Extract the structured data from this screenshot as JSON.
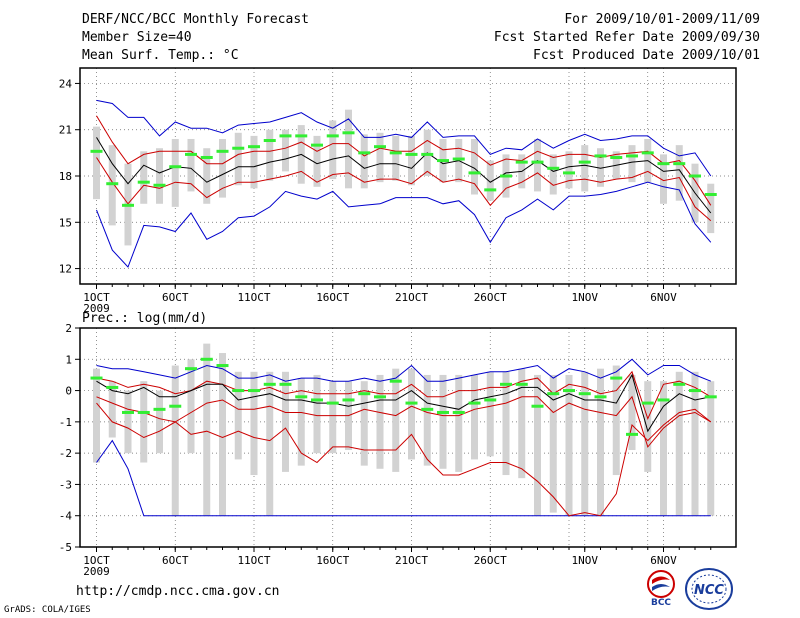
{
  "header": {
    "title": "DERF/NCC/BCC Monthly Forecast",
    "member_size": "Member Size=40",
    "variable": "Mean Surf. Temp.: °C",
    "period": "For 2009/10/01-2009/11/09",
    "fcst_started": "Fcst Started Refer Date 2009/09/30",
    "fcst_produced": "Fcst Produced Date 2009/10/01"
  },
  "footer": {
    "url": "http://cmdp.ncc.cma.gov.cn",
    "grads": "GrADS: COLA/IGES",
    "logo_bcc": "BCC",
    "logo_ncc": "NCC"
  },
  "colors": {
    "max_min": "#0000cc",
    "spread": "#cc0000",
    "mean": "#000000",
    "control": "#33ee33",
    "box": "#d2d2d2"
  },
  "chart_data": [
    {
      "type": "line",
      "title": "Mean Surf. Temp.: °C",
      "ylim": [
        11,
        25
      ],
      "yticks": [
        12,
        15,
        18,
        21,
        24
      ],
      "xticks": [
        {
          "day": 0,
          "label": "1OCT"
        },
        {
          "day": 5,
          "label": "6OCT"
        },
        {
          "day": 10,
          "label": "11OCT"
        },
        {
          "day": 15,
          "label": "16OCT"
        },
        {
          "day": 20,
          "label": "21OCT"
        },
        {
          "day": 25,
          "label": "26OCT"
        },
        {
          "day": 31,
          "label": "1NOV"
        },
        {
          "day": 36,
          "label": "6NOV"
        }
      ],
      "year_label": "2009",
      "series": [
        {
          "name": "max",
          "values": [
            22.9,
            22.7,
            21.8,
            21.8,
            20.6,
            21.5,
            21.1,
            21.1,
            20.8,
            21.3,
            21.4,
            21.5,
            21.8,
            22.1,
            21.5,
            21.1,
            21.7,
            20.5,
            20.5,
            20.7,
            20.5,
            21.5,
            20.5,
            20.6,
            20.6,
            19.4,
            19.8,
            19.7,
            20.4,
            19.8,
            20.3,
            20.7,
            20.3,
            20.4,
            20.6,
            20.6,
            19.8,
            19.3,
            19.5,
            18.0
          ]
        },
        {
          "name": "upper",
          "values": [
            21.9,
            20.2,
            18.8,
            19.4,
            19.6,
            19.6,
            19.6,
            18.8,
            18.8,
            19.4,
            19.6,
            19.6,
            19.8,
            20.2,
            19.6,
            20.1,
            20.1,
            19.3,
            19.8,
            19.6,
            19.6,
            20.3,
            19.7,
            19.8,
            19.5,
            18.7,
            19.1,
            19.0,
            19.6,
            19.2,
            19.4,
            19.4,
            19.2,
            19.4,
            19.5,
            19.6,
            18.8,
            19.0,
            17.7,
            16.1
          ]
        },
        {
          "name": "mean",
          "values": [
            20.5,
            18.8,
            17.5,
            18.7,
            18.2,
            18.6,
            18.5,
            17.6,
            18.1,
            18.6,
            18.6,
            18.9,
            19.1,
            19.4,
            18.8,
            19.1,
            19.3,
            18.5,
            18.8,
            18.8,
            18.5,
            19.5,
            18.8,
            19.0,
            18.5,
            17.6,
            18.2,
            18.3,
            19.0,
            18.3,
            18.6,
            18.7,
            18.5,
            18.7,
            18.9,
            19.0,
            18.3,
            18.4,
            16.9,
            15.6
          ]
        },
        {
          "name": "lower",
          "values": [
            19.2,
            17.6,
            16.2,
            17.4,
            17.2,
            17.6,
            17.5,
            16.6,
            17.2,
            17.6,
            17.6,
            17.8,
            18.0,
            18.3,
            17.6,
            18.1,
            18.2,
            17.6,
            17.8,
            17.8,
            17.5,
            18.3,
            17.6,
            17.8,
            17.5,
            16.1,
            17.2,
            17.6,
            18.2,
            17.4,
            17.7,
            17.8,
            17.6,
            17.8,
            17.9,
            18.3,
            17.7,
            17.9,
            16.0,
            15.1
          ]
        },
        {
          "name": "min",
          "values": [
            15.8,
            13.2,
            12.1,
            14.8,
            14.7,
            14.4,
            15.6,
            13.9,
            14.4,
            15.3,
            15.4,
            16.0,
            17.0,
            16.7,
            16.5,
            17.0,
            16.0,
            16.1,
            16.2,
            16.6,
            16.6,
            16.6,
            16.2,
            16.4,
            15.5,
            13.7,
            15.3,
            15.8,
            16.5,
            15.8,
            16.7,
            16.7,
            16.8,
            17.0,
            17.3,
            17.6,
            17.3,
            17.1,
            14.9,
            13.7
          ]
        },
        {
          "name": "control",
          "values": [
            19.6,
            17.5,
            16.1,
            17.6,
            17.4,
            18.6,
            19.4,
            19.2,
            19.6,
            19.8,
            19.9,
            20.3,
            20.6,
            20.6,
            20.0,
            20.6,
            20.8,
            19.5,
            19.9,
            19.5,
            19.4,
            19.4,
            19.0,
            19.1,
            18.2,
            17.1,
            18.0,
            18.9,
            18.9,
            18.5,
            18.2,
            18.9,
            19.3,
            19.2,
            19.3,
            19.5,
            18.8,
            18.8,
            18.0,
            16.8
          ]
        }
      ],
      "boxes": [
        [
          16.5,
          21.2
        ],
        [
          14.8,
          20.0
        ],
        [
          13.5,
          18.8
        ],
        [
          16.2,
          19.6
        ],
        [
          16.2,
          19.8
        ],
        [
          16.0,
          20.4
        ],
        [
          17.0,
          20.4
        ],
        [
          16.2,
          19.8
        ],
        [
          16.6,
          20.4
        ],
        [
          17.4,
          20.8
        ],
        [
          17.2,
          20.6
        ],
        [
          17.7,
          21.0
        ],
        [
          18.3,
          21.0
        ],
        [
          17.5,
          21.3
        ],
        [
          17.3,
          20.6
        ],
        [
          17.8,
          21.6
        ],
        [
          17.2,
          22.3
        ],
        [
          17.2,
          20.7
        ],
        [
          17.6,
          20.8
        ],
        [
          17.7,
          20.6
        ],
        [
          17.4,
          20.6
        ],
        [
          18.0,
          21.0
        ],
        [
          17.6,
          20.4
        ],
        [
          17.6,
          20.4
        ],
        [
          16.8,
          20.4
        ],
        [
          16.4,
          19.0
        ],
        [
          16.6,
          19.4
        ],
        [
          17.2,
          19.4
        ],
        [
          17.0,
          20.4
        ],
        [
          16.8,
          19.4
        ],
        [
          17.2,
          19.6
        ],
        [
          17.0,
          20.0
        ],
        [
          17.3,
          19.8
        ],
        [
          17.8,
          19.6
        ],
        [
          17.6,
          20.0
        ],
        [
          17.6,
          20.4
        ],
        [
          16.2,
          19.4
        ],
        [
          16.4,
          20.0
        ],
        [
          15.0,
          18.8
        ],
        [
          14.3,
          17.5
        ]
      ]
    },
    {
      "type": "line",
      "title": "Prec.: log(mm/d)",
      "ylim": [
        -5,
        2
      ],
      "yticks": [
        -5,
        -4,
        -3,
        -2,
        -1,
        0,
        1,
        2
      ],
      "xticks": [
        {
          "day": 0,
          "label": "1OCT"
        },
        {
          "day": 5,
          "label": "6OCT"
        },
        {
          "day": 10,
          "label": "11OCT"
        },
        {
          "day": 15,
          "label": "16OCT"
        },
        {
          "day": 20,
          "label": "21OCT"
        },
        {
          "day": 25,
          "label": "26OCT"
        },
        {
          "day": 31,
          "label": "1NOV"
        },
        {
          "day": 36,
          "label": "6NOV"
        }
      ],
      "year_label": "2009",
      "series": [
        {
          "name": "max",
          "values": [
            0.8,
            0.7,
            0.7,
            0.6,
            0.5,
            0.4,
            0.6,
            0.8,
            0.7,
            0.4,
            0.4,
            0.5,
            0.3,
            0.4,
            0.4,
            0.3,
            0.3,
            0.4,
            0.3,
            0.4,
            0.8,
            0.3,
            0.3,
            0.4,
            0.5,
            0.6,
            0.6,
            0.7,
            0.8,
            0.4,
            0.7,
            0.6,
            0.4,
            0.6,
            1.0,
            0.5,
            0.8,
            0.8,
            0.5,
            0.3
          ]
        },
        {
          "name": "upper",
          "values": [
            0.4,
            0.3,
            0.1,
            0.2,
            0.1,
            -0.1,
            0.0,
            0.3,
            0.2,
            0.0,
            0.0,
            0.1,
            -0.1,
            0.0,
            -0.1,
            -0.1,
            -0.1,
            0.0,
            -0.1,
            -0.1,
            0.2,
            -0.2,
            -0.2,
            0.0,
            0.0,
            0.1,
            0.1,
            0.3,
            0.4,
            -0.1,
            0.2,
            0.1,
            -0.1,
            0.0,
            0.6,
            -0.9,
            0.2,
            0.3,
            0.1,
            -0.2
          ]
        },
        {
          "name": "mean",
          "values": [
            0.3,
            0.0,
            -0.1,
            0.1,
            -0.2,
            -0.2,
            0.0,
            0.2,
            0.2,
            -0.3,
            -0.2,
            -0.1,
            -0.3,
            -0.3,
            -0.4,
            -0.4,
            -0.5,
            -0.4,
            -0.3,
            -0.3,
            0.0,
            -0.4,
            -0.5,
            -0.6,
            -0.3,
            -0.2,
            -0.1,
            0.1,
            0.1,
            -0.3,
            -0.1,
            -0.3,
            -0.3,
            -0.4,
            0.5,
            -1.3,
            -0.5,
            -0.1,
            -0.3,
            -0.2
          ]
        },
        {
          "name": "lower",
          "values": [
            -0.2,
            -0.4,
            -0.6,
            -0.7,
            -0.9,
            -1.0,
            -0.7,
            -0.4,
            -0.3,
            -0.6,
            -0.6,
            -0.5,
            -0.7,
            -0.7,
            -0.8,
            -0.8,
            -0.8,
            -0.6,
            -0.7,
            -0.8,
            -0.5,
            -0.7,
            -0.8,
            -0.8,
            -0.6,
            -0.5,
            -0.4,
            -0.2,
            -0.2,
            -0.7,
            -0.4,
            -0.6,
            -0.7,
            -0.8,
            -0.2,
            -1.8,
            -1.2,
            -0.8,
            -0.7,
            -1.0
          ]
        },
        {
          "name": "min",
          "values": [
            -2.3,
            -1.6,
            -2.5,
            -4.0,
            -4.0,
            -4.0,
            -4.0,
            -4.0,
            -4.0,
            -4.0,
            -4.0,
            -4.0,
            -4.0,
            -4.0,
            -4.0,
            -4.0,
            -4.0,
            -4.0,
            -4.0,
            -4.0,
            -4.0,
            -4.0,
            -4.0,
            -4.0,
            -4.0,
            -4.0,
            -4.0,
            -4.0,
            -4.0,
            -4.0,
            -4.0,
            -4.0,
            -4.0,
            -4.0,
            -4.0,
            -4.0,
            -4.0,
            -4.0,
            -4.0,
            -4.0
          ]
        },
        {
          "name": "lower_tail",
          "values": [
            -0.4,
            -1.0,
            -1.2,
            -1.5,
            -1.3,
            -1.0,
            -1.4,
            -1.3,
            -1.5,
            -1.3,
            -1.5,
            -1.6,
            -1.2,
            -2.0,
            -2.3,
            -1.8,
            -1.8,
            -1.9,
            -1.9,
            -1.9,
            -1.4,
            -2.2,
            -2.7,
            -2.7,
            -2.5,
            -2.3,
            -2.3,
            -2.5,
            -2.9,
            -3.4,
            -4.0,
            -3.9,
            -4.0,
            -3.3,
            -1.1,
            -1.6,
            -1.1,
            -0.7,
            -0.6,
            -1.0
          ]
        },
        {
          "name": "control",
          "values": [
            0.4,
            0.1,
            -0.7,
            -0.7,
            -0.6,
            -0.5,
            0.7,
            1.0,
            0.8,
            0.0,
            0.0,
            0.2,
            0.2,
            -0.2,
            -0.3,
            -0.4,
            -0.3,
            -0.1,
            -0.2,
            0.3,
            -0.4,
            -0.6,
            -0.7,
            -0.7,
            -0.4,
            -0.3,
            0.2,
            0.2,
            -0.5,
            -0.1,
            0.0,
            -0.1,
            -0.2,
            0.4,
            -1.4,
            -0.4,
            -0.3,
            0.2,
            0.0,
            -0.2
          ]
        }
      ],
      "boxes": [
        [
          -2.3,
          0.7
        ],
        [
          -1.5,
          0.3
        ],
        [
          -2.0,
          0.0
        ],
        [
          -2.3,
          0.3
        ],
        [
          -2.0,
          0.0
        ],
        [
          -4.0,
          0.8
        ],
        [
          -2.0,
          1.0
        ],
        [
          -4.0,
          1.5
        ],
        [
          -4.0,
          1.2
        ],
        [
          -2.2,
          0.6
        ],
        [
          -2.7,
          0.6
        ],
        [
          -4.0,
          0.6
        ],
        [
          -2.6,
          0.6
        ],
        [
          -2.4,
          0.4
        ],
        [
          -2.0,
          0.5
        ],
        [
          -2.0,
          0.3
        ],
        [
          -1.9,
          0.3
        ],
        [
          -2.4,
          0.3
        ],
        [
          -2.5,
          0.5
        ],
        [
          -2.6,
          0.7
        ],
        [
          -2.2,
          0.7
        ],
        [
          -2.4,
          0.5
        ],
        [
          -2.5,
          0.5
        ],
        [
          -2.6,
          0.5
        ],
        [
          -2.2,
          0.5
        ],
        [
          -2.1,
          0.6
        ],
        [
          -2.7,
          0.6
        ],
        [
          -2.8,
          0.7
        ],
        [
          -4.0,
          0.5
        ],
        [
          -3.9,
          0.5
        ],
        [
          -4.0,
          0.5
        ],
        [
          -4.0,
          0.6
        ],
        [
          -4.0,
          0.7
        ],
        [
          -2.7,
          0.8
        ],
        [
          -1.9,
          0.5
        ],
        [
          -2.6,
          0.3
        ],
        [
          -4.0,
          0.3
        ],
        [
          -4.0,
          0.6
        ],
        [
          -4.0,
          0.6
        ],
        [
          -4.0,
          0.3
        ]
      ]
    }
  ]
}
